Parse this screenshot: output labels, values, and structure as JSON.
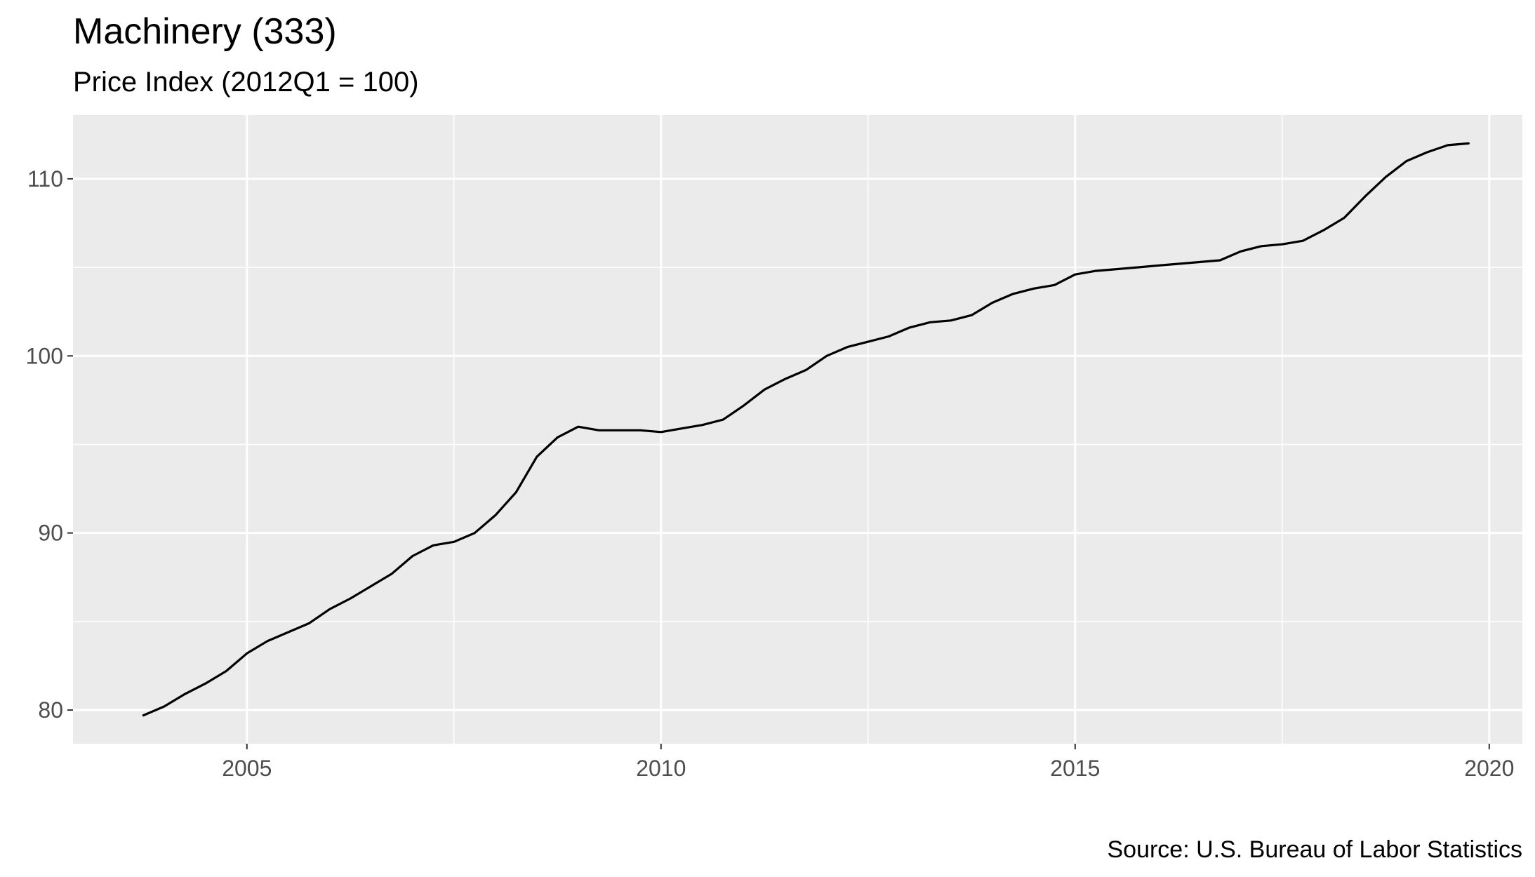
{
  "chart_data": {
    "type": "line",
    "title": "Machinery (333)",
    "subtitle": "Price Index (2012Q1 = 100)",
    "caption": "Source: U.S. Bureau of Labor Statistics",
    "xlabel": "",
    "ylabel": "",
    "xlim": [
      2002.9,
      2020.4
    ],
    "ylim": [
      78.1,
      113.6
    ],
    "x_ticks": [
      2005,
      2010,
      2015,
      2020
    ],
    "x_tick_labels": [
      "2005",
      "2010",
      "2015",
      "2020"
    ],
    "y_ticks": [
      80,
      90,
      100,
      110
    ],
    "y_tick_labels": [
      "80",
      "90",
      "100",
      "110"
    ],
    "grid": true,
    "legend": "none",
    "colors": {
      "panel": "#ebebeb",
      "grid": "#ffffff",
      "line": "#000000",
      "tick": "#4d4d4d"
    },
    "series": [
      {
        "x": [
          2003.75,
          2004.0,
          2004.25,
          2004.5,
          2004.75,
          2005.0,
          2005.25,
          2005.5,
          2005.75,
          2006.0,
          2006.25,
          2006.5,
          2006.75,
          2007.0,
          2007.25,
          2007.5,
          2007.75,
          2008.0,
          2008.25,
          2008.5,
          2008.75,
          2009.0,
          2009.25,
          2009.5,
          2009.75,
          2010.0,
          2010.25,
          2010.5,
          2010.75,
          2011.0,
          2011.25,
          2011.5,
          2011.75,
          2012.0,
          2012.25,
          2012.5,
          2012.75,
          2013.0,
          2013.25,
          2013.5,
          2013.75,
          2014.0,
          2014.25,
          2014.5,
          2014.75,
          2015.0,
          2015.25,
          2015.5,
          2015.75,
          2016.0,
          2016.25,
          2016.5,
          2016.75,
          2017.0,
          2017.25,
          2017.5,
          2017.75,
          2018.0,
          2018.25,
          2018.5,
          2018.75,
          2019.0,
          2019.25,
          2019.5,
          2019.75
        ],
        "values": [
          79.7,
          80.2,
          80.9,
          81.5,
          82.2,
          83.2,
          83.9,
          84.4,
          84.9,
          85.7,
          86.3,
          87.0,
          87.7,
          88.7,
          89.3,
          89.5,
          90.0,
          91.0,
          92.3,
          94.3,
          95.4,
          96.0,
          95.8,
          95.8,
          95.8,
          95.7,
          95.9,
          96.1,
          96.4,
          97.2,
          98.1,
          98.7,
          99.2,
          100.0,
          100.5,
          100.8,
          101.1,
          101.6,
          101.9,
          102.0,
          102.3,
          103.0,
          103.5,
          103.8,
          104.0,
          104.6,
          104.8,
          104.9,
          105.0,
          105.1,
          105.2,
          105.3,
          105.4,
          105.9,
          106.2,
          106.3,
          106.5,
          107.1,
          107.8,
          109.0,
          110.1,
          111.0,
          111.5,
          111.9,
          112.0
        ]
      }
    ]
  }
}
